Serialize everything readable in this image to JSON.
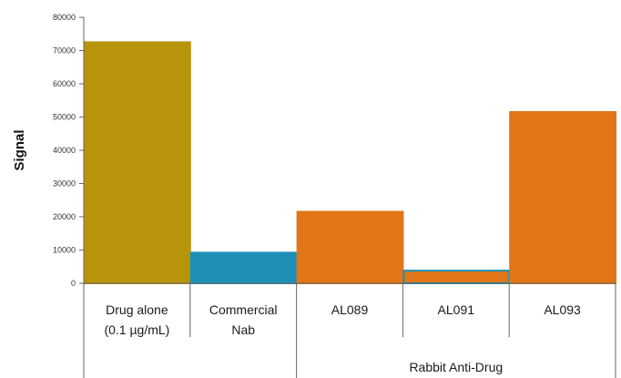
{
  "chart_data": {
    "type": "bar",
    "title": "",
    "ylabel": "Signal",
    "xlabel": "",
    "ylim": [
      0,
      80000
    ],
    "yticks": [
      0,
      10000,
      20000,
      30000,
      40000,
      50000,
      60000,
      70000,
      80000
    ],
    "grid": false,
    "legend": "none",
    "categories": [
      [
        "Drug alone",
        "(0.1 µg/mL)"
      ],
      [
        "Commercial",
        "Nab"
      ],
      [
        "AL089"
      ],
      [
        "AL091"
      ],
      [
        "AL093"
      ]
    ],
    "values": [
      72500,
      9200,
      21500,
      3800,
      51500
    ],
    "colors": [
      "#b8940b",
      "#1f8fb5",
      "#e07617",
      "#e07617",
      "#e07617"
    ],
    "outline_colors": [
      "#b8940b",
      "#1f8fb5",
      "#e07617",
      "#1f8fb5",
      "#e07617"
    ],
    "group_label": "Rabbit Anti-Drug",
    "group_categories": [
      2,
      3,
      4
    ]
  }
}
